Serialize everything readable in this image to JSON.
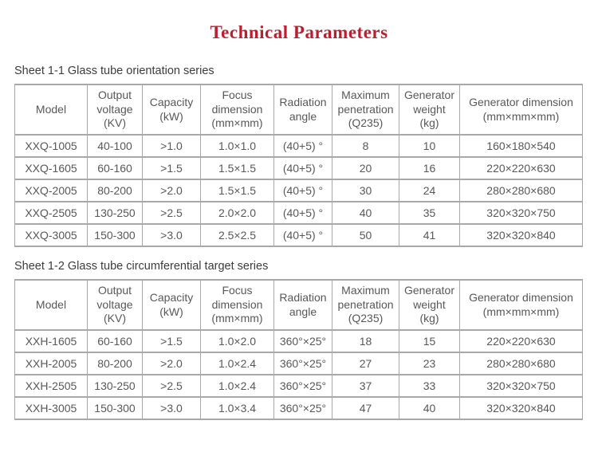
{
  "page": {
    "title": "Technical Parameters"
  },
  "colors": {
    "title_red": "#bb1f2f",
    "border_gray": "#a8a8a8",
    "table_text_gray": "#585858",
    "caption_text": "#3c3c3c",
    "background": "#ffffff"
  },
  "tables": [
    {
      "caption": "Sheet 1-1 Glass tube orientation series",
      "header": [
        "Model",
        "Output\nvoltage\n(KV)",
        "Capacity\n(kW)",
        "Focus\ndimension\n(mm×mm)",
        "Radiation\nangle",
        "Maximum\npenetration\n(Q235)",
        "Generator\nweight\n(kg)",
        "Generator dimension\n(mm×mm×mm)"
      ],
      "rows": [
        [
          "XXQ-1005",
          "40-100",
          ">1.0",
          "1.0×1.0",
          "(40+5) °",
          "8",
          "10",
          "160×180×540"
        ],
        [
          "XXQ-1605",
          "60-160",
          ">1.5",
          "1.5×1.5",
          "(40+5) °",
          "20",
          "16",
          "220×220×630"
        ],
        [
          "XXQ-2005",
          "80-200",
          ">2.0",
          "1.5×1.5",
          "(40+5) °",
          "30",
          "24",
          "280×280×680"
        ],
        [
          "XXQ-2505",
          "130-250",
          ">2.5",
          "2.0×2.0",
          "(40+5) °",
          "40",
          "35",
          "320×320×750"
        ],
        [
          "XXQ-3005",
          "150-300",
          ">3.0",
          "2.5×2.5",
          "(40+5) °",
          "50",
          "41",
          "320×320×840"
        ]
      ]
    },
    {
      "caption": "Sheet 1-2 Glass tube circumferential target series",
      "header": [
        "Model",
        "Output\nvoltage\n(KV)",
        "Capacity\n(kW)",
        "Focus\ndimension\n(mm×mm)",
        "Radiation\nangle",
        "Maximum\npenetration\n(Q235)",
        "Generator\nweight\n(kg)",
        "Generator dimension\n(mm×mm×mm)"
      ],
      "rows": [
        [
          "XXH-1605",
          "60-160",
          ">1.5",
          "1.0×2.0",
          "360°×25°",
          "18",
          "15",
          "220×220×630"
        ],
        [
          "XXH-2005",
          "80-200",
          ">2.0",
          "1.0×2.4",
          "360°×25°",
          "27",
          "23",
          "280×280×680"
        ],
        [
          "XXH-2505",
          "130-250",
          ">2.5",
          "1.0×2.4",
          "360°×25°",
          "37",
          "33",
          "320×320×750"
        ],
        [
          "XXH-3005",
          "150-300",
          ">3.0",
          "1.0×3.4",
          "360°×25°",
          "47",
          "40",
          "320×320×840"
        ]
      ]
    }
  ]
}
